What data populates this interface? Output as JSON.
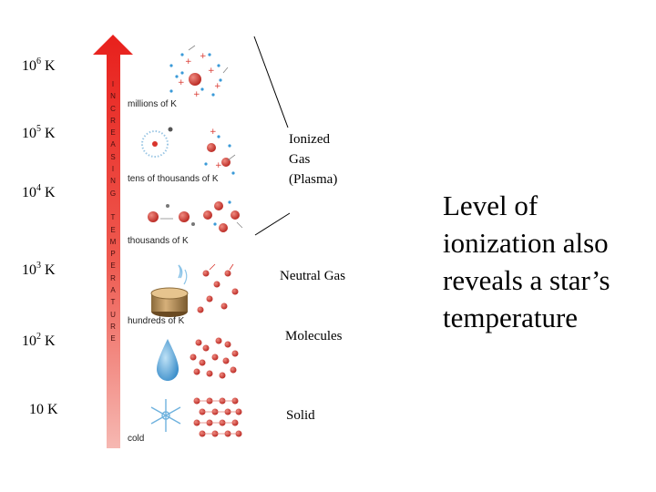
{
  "temperatures": [
    {
      "base": "10",
      "exp": "6",
      "unit": "K"
    },
    {
      "base": "10",
      "exp": "5",
      "unit": "K"
    },
    {
      "base": "10",
      "exp": "4",
      "unit": "K"
    },
    {
      "base": "10",
      "exp": "3",
      "unit": "K"
    },
    {
      "base": "10",
      "exp": "2",
      "unit": "K"
    },
    {
      "base": "10",
      "exp": "",
      "unit": "K"
    }
  ],
  "arrow_label": "INCREASING TEMPERATURE",
  "sublabels": {
    "millions": "millions of K",
    "tens_of_thousands": "tens of thousands of K",
    "thousands": "thousands of K",
    "hundreds": "hundreds of K",
    "cold": "cold"
  },
  "states": {
    "ionized": [
      "Ionized",
      "Gas",
      "(Plasma)"
    ],
    "neutral": "Neutral Gas",
    "molecules": "Molecules",
    "solid": "Solid"
  },
  "headline": [
    "Level of",
    "ionization also",
    "reveals a star’s",
    "temperature"
  ],
  "colors": {
    "arrow_top": "#e8201c",
    "arrow_bottom": "#f4a6a0",
    "particle_red": "#d8342c",
    "particle_blue": "#3a9ad8",
    "water": "#4aa2d8"
  }
}
